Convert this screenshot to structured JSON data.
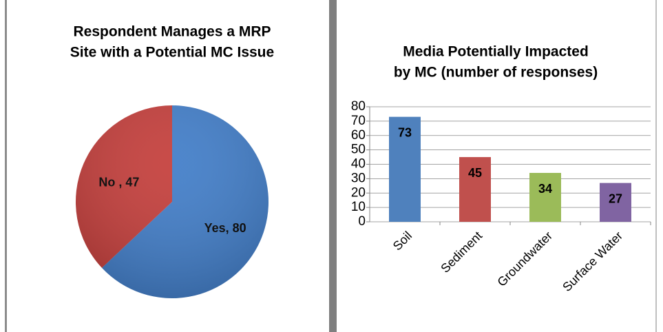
{
  "chart_data": [
    {
      "type": "pie",
      "title": [
        "Respondent Manages a MRP",
        "Site with a Potential MC Issue"
      ],
      "values": [
        80,
        47
      ],
      "value_labels": [
        "Yes, 80",
        "No , 47"
      ],
      "colors": [
        "#3f7cc8",
        "#c43c39"
      ]
    },
    {
      "type": "bar",
      "title": [
        "Media Potentially Impacted",
        "by MC (number of responses)"
      ],
      "categories": [
        "Soil",
        "Sediment",
        "Groundwater",
        "Surface Water"
      ],
      "values": [
        73,
        45,
        34,
        27
      ],
      "colors": [
        "#4f81bd",
        "#c0504d",
        "#9bbb59",
        "#8064a2"
      ],
      "ylim": [
        0,
        80
      ],
      "yticks": [
        0,
        10,
        20,
        30,
        40,
        50,
        60,
        70,
        80
      ],
      "grid": true
    }
  ]
}
